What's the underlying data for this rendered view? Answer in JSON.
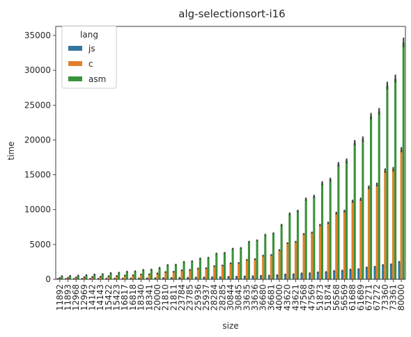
{
  "chart_data": {
    "type": "bar",
    "title": "alg-selectionsort-i16",
    "xlabel": "size",
    "ylabel": "time",
    "ylim": [
      0,
      36300
    ],
    "yticks": [
      0,
      5000,
      10000,
      15000,
      20000,
      25000,
      30000,
      35000
    ],
    "grid": false,
    "legend": {
      "title": "lang",
      "placement": "top-left"
    },
    "error_bars": true,
    "categories": [
      "11892",
      "11893",
      "12968",
      "12969",
      "14142",
      "14143",
      "15422",
      "15423",
      "16817",
      "16818",
      "18340",
      "18341",
      "20000",
      "21810",
      "21811",
      "23784",
      "23785",
      "25936",
      "25937",
      "28284",
      "28285",
      "30844",
      "30845",
      "33635",
      "33636",
      "36680",
      "36681",
      "40000",
      "43620",
      "43621",
      "47568",
      "47569",
      "51873",
      "51874",
      "56568",
      "56569",
      "61688",
      "61689",
      "67271",
      "67272",
      "73360",
      "73361",
      "80000"
    ],
    "series": [
      {
        "name": "js",
        "color": "#3274a1",
        "values": [
          50,
          55,
          60,
          65,
          75,
          80,
          95,
          100,
          110,
          120,
          130,
          140,
          160,
          180,
          190,
          210,
          225,
          250,
          270,
          300,
          320,
          350,
          370,
          420,
          440,
          500,
          520,
          600,
          700,
          720,
          850,
          870,
          1000,
          1050,
          1200,
          1250,
          1400,
          1450,
          1700,
          1800,
          2050,
          2150,
          2500
        ]
      },
      {
        "name": "c",
        "color": "#e1812c",
        "values": [
          200,
          230,
          280,
          300,
          350,
          380,
          450,
          470,
          550,
          580,
          700,
          730,
          850,
          1050,
          1100,
          1300,
          1350,
          1550,
          1600,
          1900,
          2000,
          2300,
          2350,
          2800,
          2900,
          3400,
          3500,
          4200,
          5200,
          5400,
          6500,
          6700,
          7800,
          8100,
          9500,
          9800,
          11200,
          11500,
          13200,
          13600,
          15600,
          15800,
          18600
        ]
      },
      {
        "name": "asm",
        "color": "#3a923a",
        "values": [
          450,
          500,
          550,
          600,
          700,
          750,
          900,
          950,
          1100,
          1150,
          1350,
          1400,
          1650,
          2050,
          2100,
          2500,
          2600,
          3000,
          3100,
          3700,
          3800,
          4400,
          4500,
          5400,
          5600,
          6400,
          6600,
          7800,
          9400,
          9800,
          11500,
          11900,
          13800,
          14300,
          16500,
          17000,
          19600,
          20100,
          23400,
          24100,
          27800,
          28800,
          34000
        ]
      }
    ]
  }
}
